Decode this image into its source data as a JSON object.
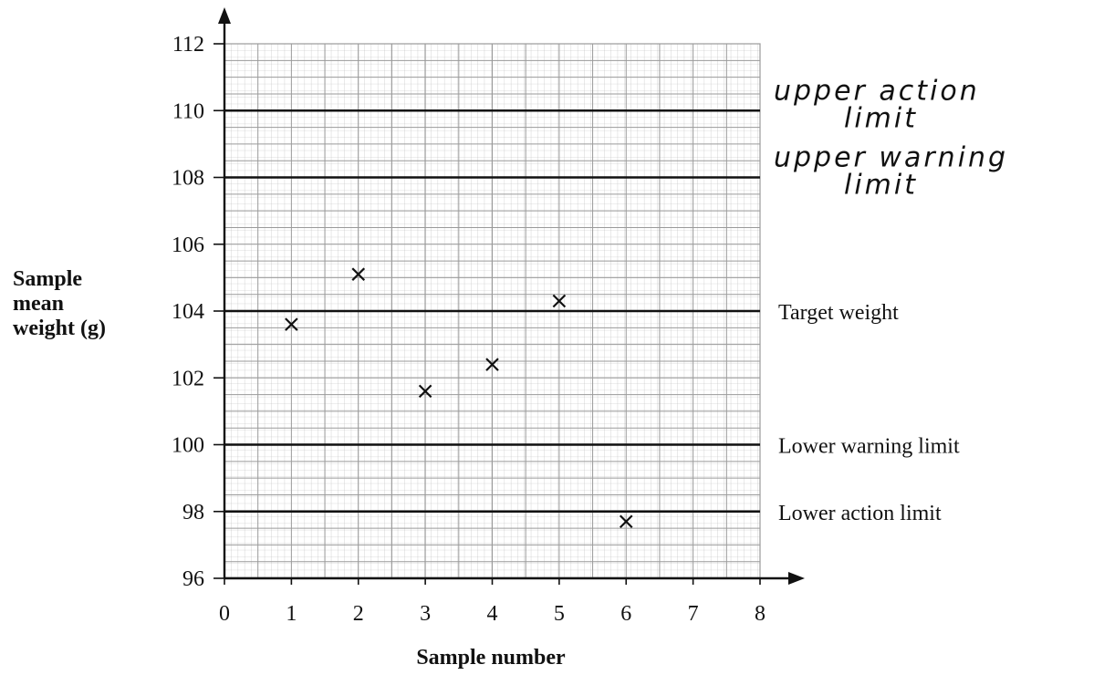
{
  "chart_data": {
    "type": "scatter",
    "title": "",
    "xlabel": "Sample number",
    "ylabel": [
      "Sample",
      "mean",
      "weight (g)"
    ],
    "xlim": [
      0,
      8
    ],
    "ylim": [
      96,
      112
    ],
    "x_ticks": [
      0,
      1,
      2,
      3,
      4,
      5,
      6,
      7,
      8
    ],
    "y_ticks": [
      96,
      98,
      100,
      102,
      104,
      106,
      108,
      110,
      112
    ],
    "grid": true,
    "marker": "x",
    "points": [
      {
        "x": 1,
        "y": 103.6
      },
      {
        "x": 2,
        "y": 105.1
      },
      {
        "x": 3,
        "y": 101.6
      },
      {
        "x": 4,
        "y": 102.4
      },
      {
        "x": 5,
        "y": 104.3
      },
      {
        "x": 6,
        "y": 97.7
      }
    ],
    "reference_lines": [
      {
        "y": 110,
        "label": [
          "upper action",
          "limit"
        ],
        "handwritten": true
      },
      {
        "y": 108,
        "label": [
          "upper warning",
          "limit"
        ],
        "handwritten": true
      },
      {
        "y": 104,
        "label": [
          "Target weight"
        ],
        "handwritten": false
      },
      {
        "y": 100,
        "label": [
          "Lower warning limit"
        ],
        "handwritten": false
      },
      {
        "y": 98,
        "label": [
          "Lower action limit"
        ],
        "handwritten": false
      }
    ],
    "colors": {
      "grid": "#9a9a9a",
      "ink": "#111111",
      "background": "#ffffff"
    }
  }
}
